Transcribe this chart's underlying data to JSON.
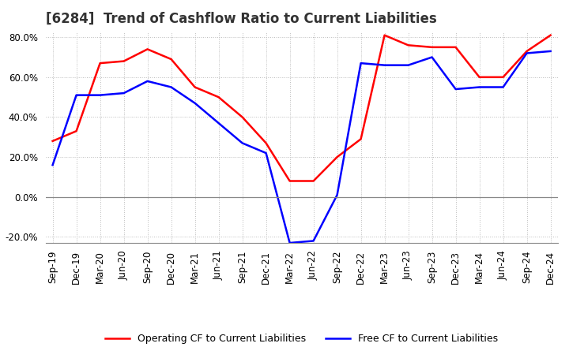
{
  "title": "[6284]  Trend of Cashflow Ratio to Current Liabilities",
  "x_labels": [
    "Sep-19",
    "Dec-19",
    "Mar-20",
    "Jun-20",
    "Sep-20",
    "Dec-20",
    "Mar-21",
    "Jun-21",
    "Sep-21",
    "Dec-21",
    "Mar-22",
    "Jun-22",
    "Sep-22",
    "Dec-22",
    "Mar-23",
    "Jun-23",
    "Sep-23",
    "Dec-23",
    "Mar-24",
    "Jun-24",
    "Sep-24",
    "Dec-24"
  ],
  "operating_cf": [
    28.0,
    33.0,
    67.0,
    68.0,
    74.0,
    69.0,
    55.0,
    50.0,
    40.0,
    27.0,
    8.0,
    8.0,
    20.0,
    29.0,
    81.0,
    76.0,
    75.0,
    75.0,
    60.0,
    60.0,
    73.0,
    81.0
  ],
  "free_cf": [
    16.0,
    51.0,
    51.0,
    52.0,
    58.0,
    55.0,
    47.0,
    37.0,
    27.0,
    22.0,
    -23.0,
    -22.0,
    1.0,
    67.0,
    66.0,
    66.0,
    70.0,
    54.0,
    55.0,
    55.0,
    72.0,
    73.0
  ],
  "operating_color": "#ff0000",
  "free_color": "#0000ff",
  "ylim": [
    -20.0,
    80.0
  ],
  "yticks": [
    -20.0,
    0.0,
    20.0,
    40.0,
    60.0,
    80.0
  ],
  "background_color": "#ffffff",
  "grid_color": "#bbbbbb",
  "legend_operating": "Operating CF to Current Liabilities",
  "legend_free": "Free CF to Current Liabilities",
  "title_fontsize": 12,
  "tick_fontsize": 8.5
}
